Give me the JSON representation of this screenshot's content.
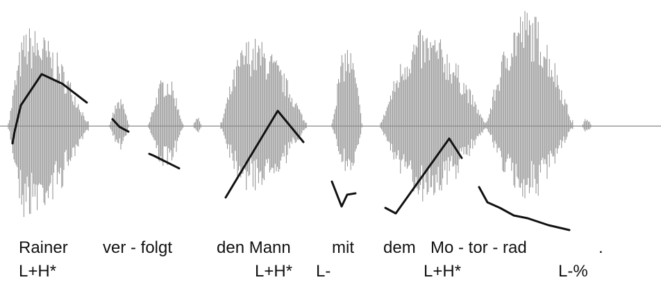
{
  "words": [
    "Rainer",
    "ver - folgt",
    "den Mann",
    "mit",
    "dem",
    "Mo - tor - rad",
    "."
  ],
  "tones": [
    "L+H*",
    "L+H*",
    "L-",
    "L+H*",
    "L-%"
  ]
}
